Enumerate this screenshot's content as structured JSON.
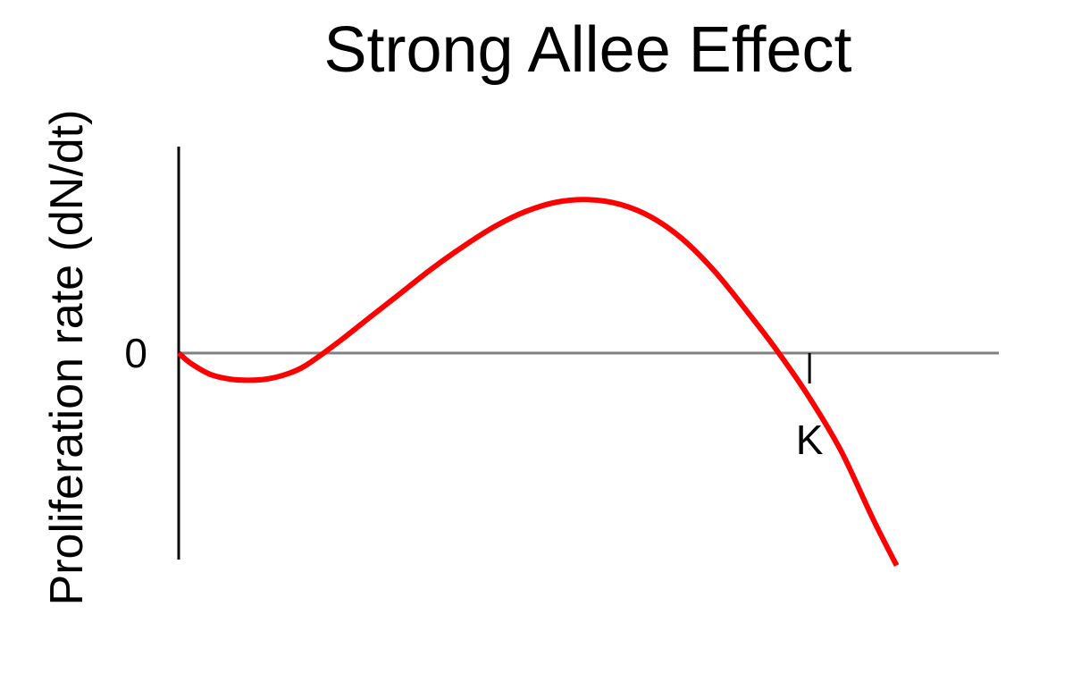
{
  "chart_data": {
    "type": "line",
    "title": "Strong Allee Effect",
    "xlabel": "",
    "ylabel": "Proliferation rate (dN/dt)",
    "x_ticks": [
      {
        "value": 100,
        "label": "K"
      }
    ],
    "y_ticks": [
      {
        "value": 0,
        "label": "0"
      }
    ],
    "xlim": [
      0,
      130
    ],
    "ylim": [
      -1.75,
      1.75
    ],
    "grid": false,
    "legend": "none",
    "series": [
      {
        "color": "#ff0000",
        "x": [
          0,
          2,
          5,
          8,
          11,
          14,
          17,
          20,
          25,
          30,
          35,
          40,
          45,
          50,
          55,
          60,
          65,
          70,
          75,
          80,
          85,
          90,
          95,
          100,
          105,
          110,
          113.8
        ],
        "y": [
          0,
          -0.09,
          -0.18,
          -0.22,
          -0.23,
          -0.22,
          -0.18,
          -0.11,
          0.08,
          0.29,
          0.5,
          0.71,
          0.9,
          1.07,
          1.2,
          1.28,
          1.3,
          1.26,
          1.15,
          0.96,
          0.69,
          0.36,
          0.01,
          -0.38,
          -0.83,
          -1.4,
          -1.8
        ]
      }
    ],
    "colors": {
      "curve": "#ff0000",
      "zero_line": "#808080",
      "axis": "#000000"
    }
  }
}
